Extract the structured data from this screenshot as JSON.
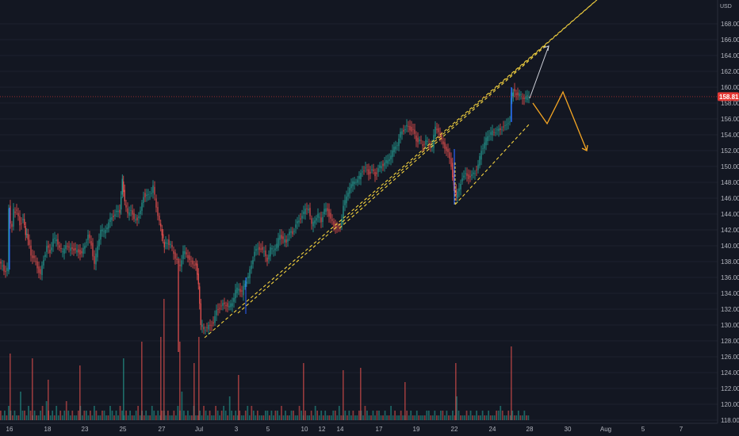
{
  "chart_data": {
    "type": "candlestick",
    "title": "",
    "currency": "USD",
    "last_price": "158.81",
    "y_axis": {
      "range": [
        118,
        170
      ],
      "ticks": [
        "168.00",
        "166.00",
        "164.00",
        "162.00",
        "160.00",
        "158.00",
        "156.00",
        "154.00",
        "152.00",
        "150.00",
        "148.00",
        "146.00",
        "144.00",
        "142.00",
        "140.00",
        "138.00",
        "136.00",
        "134.00",
        "132.00",
        "130.00",
        "128.00",
        "126.00",
        "124.00",
        "122.00",
        "120.00",
        "118.00"
      ]
    },
    "x_axis": {
      "ticks": [
        "16",
        "18",
        "23",
        "25",
        "27",
        "Jul",
        "3",
        "5",
        "10",
        "12",
        "14",
        "17",
        "19",
        "22",
        "24",
        "28",
        "30",
        "Aug",
        "5",
        "7"
      ]
    },
    "price_path": [
      [
        0,
        138
      ],
      [
        2,
        137.5
      ],
      [
        4,
        137.5
      ],
      [
        6,
        137
      ],
      [
        8,
        136.6
      ],
      [
        10,
        137
      ],
      [
        12,
        144.8
      ],
      [
        14,
        143
      ],
      [
        16,
        142.2
      ],
      [
        18,
        144.5
      ],
      [
        22,
        144.2
      ],
      [
        26,
        142.8
      ],
      [
        30,
        143.2
      ],
      [
        33,
        141.5
      ],
      [
        36,
        141
      ],
      [
        40,
        139
      ],
      [
        44,
        138.2
      ],
      [
        48,
        137.4
      ],
      [
        52,
        136.2
      ],
      [
        56,
        138.4
      ],
      [
        60,
        139.8
      ],
      [
        64,
        139.2
      ],
      [
        68,
        140.8
      ],
      [
        72,
        140.8
      ],
      [
        76,
        139.8
      ],
      [
        80,
        139.2
      ],
      [
        84,
        140.2
      ],
      [
        88,
        139.6
      ],
      [
        92,
        139.8
      ],
      [
        96,
        139.2
      ],
      [
        100,
        139.4
      ],
      [
        104,
        138.8
      ],
      [
        108,
        140.2
      ],
      [
        112,
        141.2
      ],
      [
        116,
        140.2
      ],
      [
        120,
        137.6
      ],
      [
        124,
        140
      ],
      [
        128,
        142
      ],
      [
        132,
        141.8
      ],
      [
        136,
        142.4
      ],
      [
        140,
        143.4
      ],
      [
        144,
        143.8
      ],
      [
        148,
        144.2
      ],
      [
        152,
        144.4
      ],
      [
        155,
        148.2
      ],
      [
        158,
        145.4
      ],
      [
        162,
        144
      ],
      [
        166,
        144.6
      ],
      [
        170,
        143.2
      ],
      [
        174,
        143.4
      ],
      [
        178,
        144.2
      ],
      [
        182,
        146.4
      ],
      [
        186,
        146.2
      ],
      [
        190,
        146.4
      ],
      [
        194,
        147.4
      ],
      [
        198,
        145
      ],
      [
        202,
        143
      ],
      [
        205,
        141.4
      ],
      [
        208,
        140
      ],
      [
        212,
        140.6
      ],
      [
        216,
        140
      ],
      [
        220,
        139.2
      ],
      [
        224,
        138
      ],
      [
        228,
        137.6
      ],
      [
        232,
        139.2
      ],
      [
        236,
        139
      ],
      [
        240,
        138.2
      ],
      [
        244,
        137.6
      ],
      [
        248,
        137.6
      ],
      [
        251,
        135
      ],
      [
        254,
        130
      ],
      [
        258,
        129.6
      ],
      [
        262,
        129.6
      ],
      [
        266,
        130
      ],
      [
        270,
        130.2
      ],
      [
        274,
        131.8
      ],
      [
        278,
        132.2
      ],
      [
        282,
        132.6
      ],
      [
        286,
        132.6
      ],
      [
        290,
        132.2
      ],
      [
        294,
        133
      ],
      [
        298,
        134.2
      ],
      [
        302,
        134.8
      ],
      [
        306,
        134
      ],
      [
        310,
        135.4
      ],
      [
        314,
        136
      ],
      [
        318,
        137.6
      ],
      [
        322,
        139.2
      ],
      [
        326,
        139.6
      ],
      [
        330,
        139.6
      ],
      [
        334,
        139.2
      ],
      [
        338,
        138.2
      ],
      [
        342,
        139.6
      ],
      [
        346,
        139.6
      ],
      [
        350,
        140
      ],
      [
        354,
        141.6
      ],
      [
        358,
        140.6
      ],
      [
        362,
        140.6
      ],
      [
        366,
        141.6
      ],
      [
        370,
        141.6
      ],
      [
        374,
        142.6
      ],
      [
        378,
        143.2
      ],
      [
        382,
        143.8
      ],
      [
        386,
        144.6
      ],
      [
        390,
        144.8
      ],
      [
        394,
        142.6
      ],
      [
        398,
        143.4
      ],
      [
        402,
        143.8
      ],
      [
        406,
        143.2
      ],
      [
        410,
        144.4
      ],
      [
        414,
        144.6
      ],
      [
        418,
        143.2
      ],
      [
        422,
        142.6
      ],
      [
        426,
        142.2
      ],
      [
        430,
        142.2
      ],
      [
        434,
        145
      ],
      [
        438,
        146.2
      ],
      [
        442,
        147.4
      ],
      [
        446,
        148
      ],
      [
        450,
        148.2
      ],
      [
        454,
        148.6
      ],
      [
        458,
        149.6
      ],
      [
        462,
        149.6
      ],
      [
        466,
        149.2
      ],
      [
        470,
        149.4
      ],
      [
        474,
        149
      ],
      [
        478,
        149.6
      ],
      [
        482,
        150.2
      ],
      [
        486,
        150.4
      ],
      [
        490,
        150.8
      ],
      [
        494,
        151.4
      ],
      [
        498,
        152.4
      ],
      [
        502,
        152.8
      ],
      [
        506,
        154.2
      ],
      [
        510,
        154.6
      ],
      [
        514,
        155
      ],
      [
        518,
        154.8
      ],
      [
        522,
        154.4
      ],
      [
        526,
        153.4
      ],
      [
        530,
        153.2
      ],
      [
        534,
        152.8
      ],
      [
        538,
        153.2
      ],
      [
        542,
        152.8
      ],
      [
        546,
        152.6
      ],
      [
        550,
        155
      ],
      [
        554,
        154.4
      ],
      [
        558,
        153.2
      ],
      [
        562,
        152.4
      ],
      [
        566,
        151.6
      ],
      [
        570,
        150.2
      ],
      [
        573,
        147.4
      ],
      [
        576,
        146.2
      ],
      [
        580,
        147.2
      ],
      [
        584,
        148.6
      ],
      [
        588,
        149
      ],
      [
        592,
        148.6
      ],
      [
        596,
        148.8
      ],
      [
        600,
        149.4
      ],
      [
        604,
        150
      ],
      [
        608,
        152.2
      ],
      [
        612,
        152.8
      ],
      [
        616,
        154
      ],
      [
        620,
        154.2
      ],
      [
        624,
        154.4
      ],
      [
        628,
        154.6
      ],
      [
        632,
        154.6
      ],
      [
        636,
        155
      ],
      [
        640,
        155.2
      ],
      [
        644,
        155.8
      ],
      [
        645,
        158.6
      ],
      [
        648,
        159.6
      ],
      [
        652,
        159.2
      ],
      [
        656,
        159
      ],
      [
        660,
        158.8
      ],
      [
        664,
        158.6
      ],
      [
        668,
        159
      ]
    ],
    "volume_bars": [
      2,
      1,
      2,
      1,
      3,
      2,
      1,
      2,
      1,
      1,
      6,
      2,
      2,
      1,
      3,
      2,
      1,
      2,
      1,
      1,
      2,
      3,
      1,
      4,
      2,
      1,
      2,
      1,
      3,
      1,
      2,
      1,
      2,
      4,
      2,
      1,
      2,
      1,
      1,
      2,
      3,
      1,
      2,
      2,
      1,
      2,
      1,
      3,
      2,
      1,
      1,
      2,
      2,
      1,
      1,
      3,
      2,
      1,
      2,
      1,
      3,
      2,
      1,
      2,
      1,
      2,
      1,
      1,
      2,
      3,
      1,
      2,
      1,
      2,
      1,
      1,
      3,
      2,
      1,
      2,
      1,
      2,
      2,
      1,
      2,
      1,
      1,
      2,
      1,
      3,
      2,
      6,
      2,
      1,
      2,
      1,
      1,
      3,
      1,
      1,
      2,
      1,
      3,
      2,
      1,
      2,
      1,
      1,
      3,
      2,
      1,
      2,
      3,
      2,
      1,
      5,
      2,
      1,
      2,
      1,
      2,
      1,
      1,
      2,
      3,
      1,
      3,
      2,
      1,
      2,
      1,
      1,
      1,
      2,
      2,
      1,
      2,
      1,
      2,
      2,
      1,
      3,
      1,
      2,
      1,
      1,
      2,
      2,
      1,
      1,
      3,
      2,
      1,
      2,
      1,
      1,
      2,
      1,
      3,
      2,
      1,
      2,
      1,
      2,
      1,
      1,
      1,
      2,
      2,
      1,
      3,
      1,
      1,
      2,
      1,
      2,
      1,
      2,
      1,
      1,
      2,
      2,
      1,
      3,
      2,
      1,
      1,
      2,
      1,
      2,
      2,
      1,
      1,
      2,
      1,
      1,
      3,
      1,
      2,
      1,
      1,
      2,
      1,
      1,
      2,
      1,
      2,
      1,
      1,
      2,
      1,
      1,
      1,
      1,
      2,
      2,
      1,
      1,
      2,
      1,
      1,
      2,
      2,
      1,
      2,
      1,
      1,
      2,
      1,
      5,
      2,
      1,
      1,
      1,
      2,
      1,
      2,
      1,
      1,
      2,
      1,
      1,
      2,
      1,
      1,
      2,
      1,
      1,
      1,
      2,
      2,
      3,
      2,
      1,
      1,
      2,
      1,
      2,
      1,
      1,
      2,
      1,
      1,
      2,
      1,
      1
    ],
    "volume_spikes": [
      [
        12,
        2.8
      ],
      [
        40,
        2.6
      ],
      [
        60,
        1.7
      ],
      [
        100,
        2.3
      ],
      [
        155,
        2.6
      ],
      [
        178,
        3.3
      ],
      [
        202,
        3.5
      ],
      [
        206,
        5.1
      ],
      [
        226,
        3.3
      ],
      [
        244,
        2.4
      ],
      [
        250,
        3.5
      ],
      [
        300,
        1.9
      ],
      [
        382,
        2.4
      ],
      [
        432,
        2.1
      ],
      [
        454,
        2.2
      ],
      [
        510,
        1.6
      ],
      [
        574,
        2.4
      ],
      [
        644,
        3.1
      ]
    ],
    "trendlines": [
      {
        "style": "dashed",
        "color": "#f5d33f",
        "from": [
          258,
          128.4
        ],
        "to": [
          770,
          172.5
        ]
      },
      {
        "style": "dashed",
        "color": "#f5d33f",
        "from": [
          300,
          131.5
        ],
        "to": [
          770,
          172.5
        ]
      },
      {
        "style": "dashed",
        "color": "#f5d33f",
        "from": [
          428,
          142.2
        ],
        "to": [
          688,
          165.2
        ]
      },
      {
        "style": "dashed",
        "color": "#f5d33f",
        "from": [
          574,
          145.2
        ],
        "to": [
          668,
          155.4
        ]
      }
    ],
    "projection_up": {
      "color": "#d1d4dc",
      "points": [
        [
          668,
          158.6
        ],
        [
          692,
          165.2
        ]
      ]
    },
    "projection_down": {
      "color": "#f5a623",
      "points": [
        [
          672,
          158
        ],
        [
          690,
          155.4
        ],
        [
          710,
          159.4
        ],
        [
          740,
          152
        ]
      ]
    },
    "grid": true,
    "colors": {
      "background": "#131722",
      "up": "#26a69a",
      "down": "#ef5350",
      "accent": "#2962ff",
      "badge": "#e53935"
    }
  }
}
